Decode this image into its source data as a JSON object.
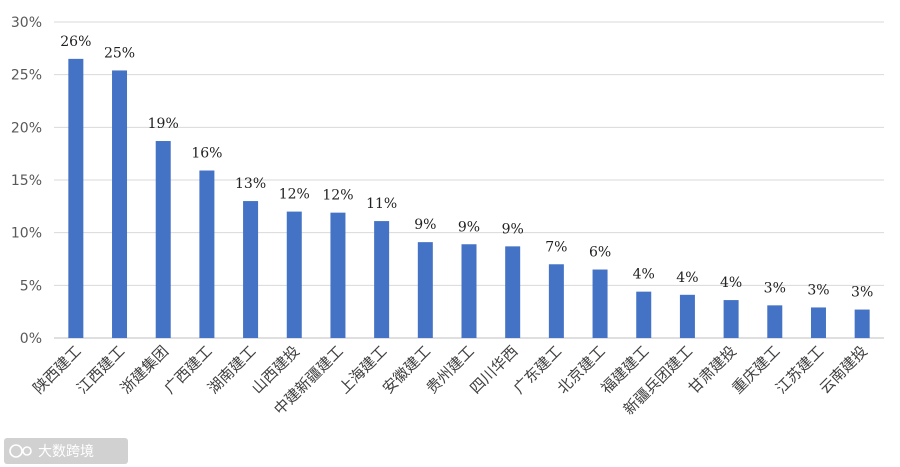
{
  "chart_data": {
    "type": "bar",
    "categories": [
      "陕西建工",
      "江西建工",
      "浙建集团",
      "广西建工",
      "湖南建工",
      "山西建投",
      "中建新疆建工",
      "上海建工",
      "安徽建工",
      "贵州建工",
      "四川华西",
      "广东建工",
      "北京建工",
      "福建建工",
      "新疆兵团建工",
      "甘肃建投",
      "重庆建工",
      "江苏建工",
      "云南建投"
    ],
    "values": [
      26.5,
      25.4,
      18.7,
      15.9,
      13.0,
      12.0,
      11.9,
      11.1,
      9.1,
      8.9,
      8.7,
      7.0,
      6.5,
      4.4,
      4.1,
      3.6,
      3.1,
      2.9,
      2.7
    ],
    "data_labels": [
      "26%",
      "25%",
      "19%",
      "16%",
      "13%",
      "12%",
      "12%",
      "11%",
      "9%",
      "9%",
      "9%",
      "7%",
      "6%",
      "4%",
      "4%",
      "4%",
      "3%",
      "3%",
      "3%"
    ],
    "y_ticks": [
      "0%",
      "5%",
      "10%",
      "15%",
      "20%",
      "25%",
      "30%"
    ],
    "ylim": [
      0,
      30
    ],
    "grid": true,
    "bar_color": "#4472c4",
    "title": "",
    "xlabel": "",
    "ylabel": ""
  },
  "watermark": {
    "text": "大数跨境",
    "icon": "logo-icon"
  }
}
